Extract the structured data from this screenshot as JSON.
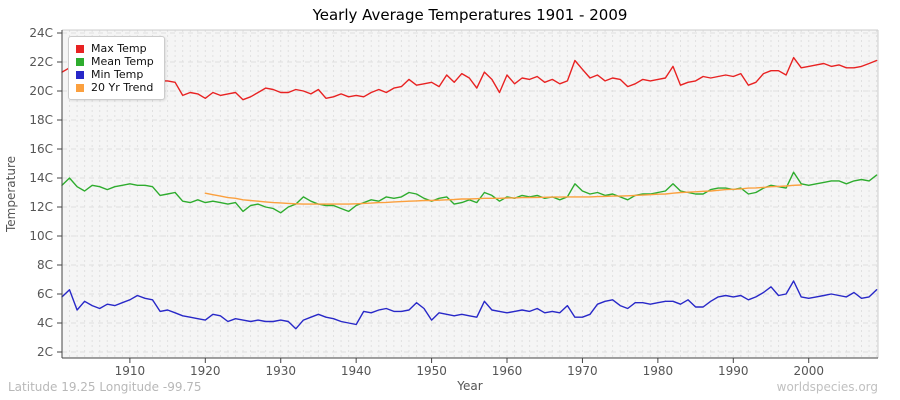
{
  "page": {
    "footer_left": "Latitude 19.25 Longitude -99.75",
    "footer_right": "worldspecies.org"
  },
  "chart_data": {
    "type": "line",
    "title": "Yearly Average Temperatures 1901 - 2009",
    "xlabel": "Year",
    "ylabel": "Temperature",
    "x_start": 1901,
    "x_end": 2009,
    "ylim": [
      2,
      24
    ],
    "y_tick_step": 2,
    "y_tick_suffix": "C",
    "x_ticks": [
      1910,
      1920,
      1930,
      1940,
      1950,
      1960,
      1970,
      1980,
      1990,
      2000
    ],
    "grid": true,
    "legend_position": "top-left",
    "plot_background": "#f5f5f5",
    "grid_color": "#e0e0e0",
    "axis_color": "#444444",
    "minor_axis_color": "#cccccc",
    "series": [
      {
        "name": "Max Temp",
        "color": "#e82222",
        "x_first": 1901,
        "values": [
          21.3,
          21.6,
          21.1,
          20.9,
          21.0,
          20.9,
          20.8,
          20.9,
          21.0,
          20.9,
          20.8,
          20.6,
          20.5,
          20.7,
          20.7,
          20.6,
          19.7,
          19.9,
          19.8,
          19.5,
          19.9,
          19.7,
          19.8,
          19.9,
          19.4,
          19.6,
          19.9,
          20.2,
          20.1,
          19.9,
          19.9,
          20.1,
          20.0,
          19.8,
          20.1,
          19.5,
          19.6,
          19.8,
          19.6,
          19.7,
          19.6,
          19.9,
          20.1,
          19.9,
          20.2,
          20.3,
          20.8,
          20.4,
          20.5,
          20.6,
          20.3,
          21.1,
          20.6,
          21.2,
          20.9,
          20.2,
          21.3,
          20.8,
          19.9,
          21.1,
          20.5,
          20.9,
          20.8,
          21.0,
          20.6,
          20.8,
          20.5,
          20.7,
          22.1,
          21.5,
          20.9,
          21.1,
          20.7,
          20.9,
          20.8,
          20.3,
          20.5,
          20.8,
          20.7,
          20.8,
          20.9,
          21.7,
          20.4,
          20.6,
          20.7,
          21.0,
          20.9,
          21.0,
          21.1,
          21.0,
          21.2,
          20.4,
          20.6,
          21.2,
          21.4,
          21.4,
          21.1,
          22.3,
          21.6,
          21.7,
          21.8,
          21.9,
          21.7,
          21.8,
          21.6,
          21.6,
          21.7,
          21.9,
          22.1
        ]
      },
      {
        "name": "Mean Temp",
        "color": "#2eac2e",
        "x_first": 1901,
        "values": [
          13.5,
          14.0,
          13.4,
          13.1,
          13.5,
          13.4,
          13.2,
          13.4,
          13.5,
          13.6,
          13.5,
          13.5,
          13.4,
          12.8,
          12.9,
          13.0,
          12.4,
          12.3,
          12.5,
          12.3,
          12.4,
          12.3,
          12.2,
          12.3,
          11.7,
          12.1,
          12.2,
          12.0,
          11.9,
          11.6,
          12.0,
          12.2,
          12.7,
          12.4,
          12.2,
          12.1,
          12.1,
          11.9,
          11.7,
          12.1,
          12.3,
          12.5,
          12.4,
          12.7,
          12.6,
          12.7,
          13.0,
          12.9,
          12.6,
          12.4,
          12.6,
          12.7,
          12.2,
          12.3,
          12.5,
          12.3,
          13.0,
          12.8,
          12.4,
          12.7,
          12.6,
          12.8,
          12.7,
          12.8,
          12.6,
          12.7,
          12.5,
          12.7,
          13.6,
          13.1,
          12.9,
          13.0,
          12.8,
          12.9,
          12.7,
          12.5,
          12.8,
          12.9,
          12.9,
          13.0,
          13.1,
          13.6,
          13.1,
          13.0,
          12.9,
          12.9,
          13.2,
          13.3,
          13.3,
          13.2,
          13.3,
          12.9,
          13.0,
          13.3,
          13.5,
          13.4,
          13.3,
          14.4,
          13.6,
          13.5,
          13.6,
          13.7,
          13.8,
          13.8,
          13.6,
          13.8,
          13.9,
          13.8,
          14.2
        ]
      },
      {
        "name": "Min Temp",
        "color": "#2828c8",
        "x_first": 1901,
        "values": [
          5.8,
          6.3,
          4.9,
          5.5,
          5.2,
          5.0,
          5.3,
          5.2,
          5.4,
          5.6,
          5.9,
          5.7,
          5.6,
          4.8,
          4.9,
          4.7,
          4.5,
          4.4,
          4.3,
          4.2,
          4.6,
          4.5,
          4.1,
          4.3,
          4.2,
          4.1,
          4.2,
          4.1,
          4.1,
          4.2,
          4.1,
          3.6,
          4.2,
          4.4,
          4.6,
          4.4,
          4.3,
          4.1,
          4.0,
          3.9,
          4.8,
          4.7,
          4.9,
          5.0,
          4.8,
          4.8,
          4.9,
          5.4,
          5.0,
          4.2,
          4.7,
          4.6,
          4.5,
          4.6,
          4.5,
          4.4,
          5.5,
          4.9,
          4.8,
          4.7,
          4.8,
          4.9,
          4.8,
          5.0,
          4.7,
          4.8,
          4.7,
          5.2,
          4.4,
          4.4,
          4.6,
          5.3,
          5.5,
          5.6,
          5.2,
          5.0,
          5.4,
          5.4,
          5.3,
          5.4,
          5.5,
          5.5,
          5.3,
          5.6,
          5.1,
          5.1,
          5.5,
          5.8,
          5.9,
          5.8,
          5.9,
          5.6,
          5.8,
          6.1,
          6.5,
          5.9,
          6.0,
          6.9,
          5.8,
          5.7,
          5.8,
          5.9,
          6.0,
          5.9,
          5.8,
          6.1,
          5.7,
          5.8,
          6.3
        ]
      },
      {
        "name": "20 Yr Trend",
        "color": "#fba03e",
        "x_first": 1920,
        "values": [
          12.95,
          12.85,
          12.75,
          12.65,
          12.6,
          12.5,
          12.45,
          12.4,
          12.35,
          12.3,
          12.28,
          12.25,
          12.22,
          12.2,
          12.2,
          12.2,
          12.2,
          12.2,
          12.2,
          12.2,
          12.22,
          12.25,
          12.27,
          12.3,
          12.32,
          12.35,
          12.37,
          12.4,
          12.42,
          12.45,
          12.45,
          12.47,
          12.5,
          12.52,
          12.55,
          12.55,
          12.57,
          12.6,
          12.6,
          12.6,
          12.62,
          12.63,
          12.65,
          12.65,
          12.66,
          12.67,
          12.68,
          12.68,
          12.7,
          12.7,
          12.7,
          12.7,
          12.72,
          12.73,
          12.75,
          12.75,
          12.77,
          12.8,
          12.82,
          12.85,
          12.88,
          12.9,
          12.95,
          13.0,
          13.02,
          13.05,
          13.08,
          13.1,
          13.15,
          13.2,
          13.22,
          13.25,
          13.3,
          13.32,
          13.35,
          13.4,
          13.42,
          13.45,
          13.5,
          13.52
        ]
      }
    ]
  }
}
